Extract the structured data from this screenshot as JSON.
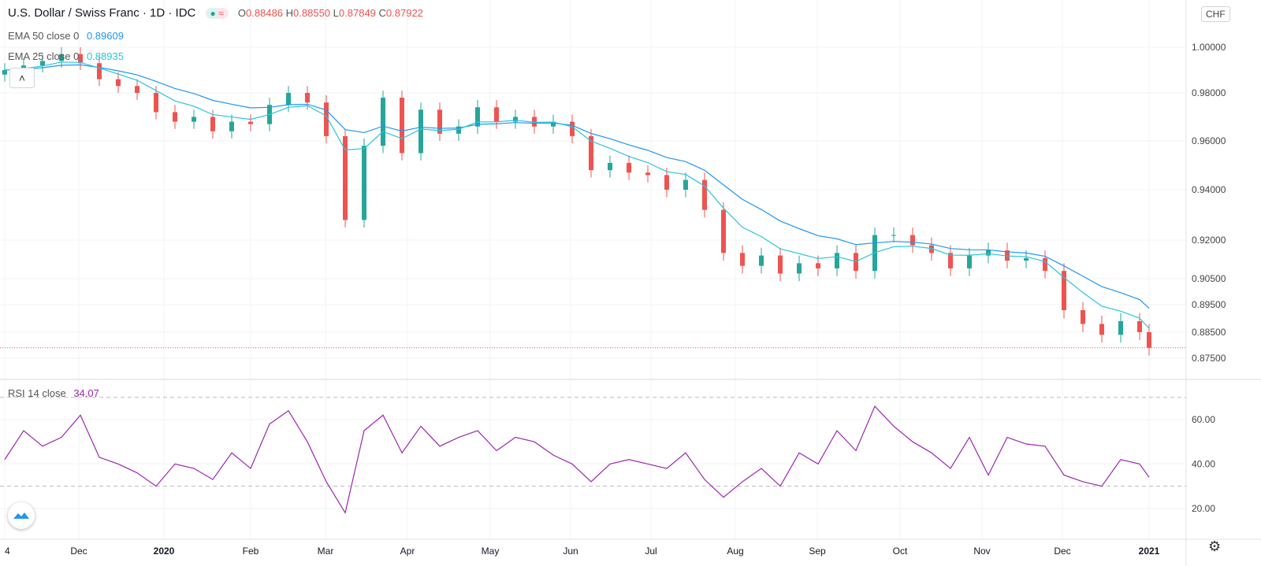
{
  "header": {
    "title": "U.S. Dollar / Swiss Franc · 1D · IDC",
    "ohlc": {
      "o_label": "O",
      "o": "0.88486",
      "h_label": "H",
      "h": "0.88550",
      "l_label": "L",
      "l": "0.87849",
      "c_label": "C",
      "c": "0.87922"
    },
    "currency": "CHF"
  },
  "indicators": [
    {
      "label": "EMA 50 close 0",
      "value": "0.89609",
      "color": "#2196f3",
      "period": 50
    },
    {
      "label": "EMA 25 close 0",
      "value": "0.88935",
      "color": "#26c6da",
      "period": 25
    }
  ],
  "rsi": {
    "label": "RSI 14 close",
    "value": "34.07",
    "color": "#9c27b0"
  },
  "colors": {
    "up": "#26a69a",
    "down": "#ef5350"
  },
  "chart_data": [
    {
      "type": "candlestick",
      "title": "U.S. Dollar / Swiss Franc · 1D · IDC",
      "start_date": "2019-11-04",
      "interval": "weekly sample",
      "closes": [
        0.99,
        0.992,
        0.994,
        0.997,
        0.993,
        0.986,
        0.983,
        0.98,
        0.972,
        0.968,
        0.97,
        0.964,
        0.968,
        0.967,
        0.975,
        0.98,
        0.976,
        0.962,
        0.928,
        0.958,
        0.978,
        0.955,
        0.973,
        0.963,
        0.966,
        0.974,
        0.968,
        0.97,
        0.966,
        0.968,
        0.962,
        0.948,
        0.951,
        0.947,
        0.946,
        0.94,
        0.944,
        0.932,
        0.915,
        0.91,
        0.914,
        0.907,
        0.911,
        0.909,
        0.915,
        0.908,
        0.922,
        0.922,
        0.918,
        0.915,
        0.909,
        0.914,
        0.916,
        0.912,
        0.913,
        0.908,
        0.893,
        0.888,
        0.884,
        0.889,
        0.885,
        0.879
      ],
      "y_ticks": [
        "1.00000",
        "0.98000",
        "0.96000",
        "0.94000",
        "0.92000",
        "0.90500",
        "0.89500",
        "0.88500",
        "0.87500"
      ],
      "x_ticks": [
        "4",
        "Dec",
        "2020",
        "Feb",
        "Mar",
        "Apr",
        "May",
        "Jun",
        "Jul",
        "Aug",
        "Sep",
        "Oct",
        "Nov",
        "Dec",
        "2021"
      ]
    },
    {
      "type": "line",
      "title": "RSI 14 close",
      "ylim": [
        10,
        75
      ],
      "bands": [
        30,
        70
      ],
      "values": [
        42,
        55,
        48,
        52,
        62,
        43,
        40,
        36,
        30,
        40,
        38,
        33,
        45,
        38,
        58,
        64,
        50,
        32,
        18,
        55,
        62,
        45,
        57,
        48,
        52,
        55,
        46,
        52,
        50,
        44,
        40,
        32,
        40,
        42,
        40,
        38,
        45,
        33,
        25,
        32,
        38,
        30,
        45,
        40,
        55,
        46,
        66,
        57,
        50,
        45,
        38,
        52,
        35,
        52,
        49,
        48,
        35,
        32,
        30,
        42,
        40,
        34
      ],
      "y_ticks": [
        "60.00",
        "40.00",
        "20.00"
      ]
    }
  ]
}
